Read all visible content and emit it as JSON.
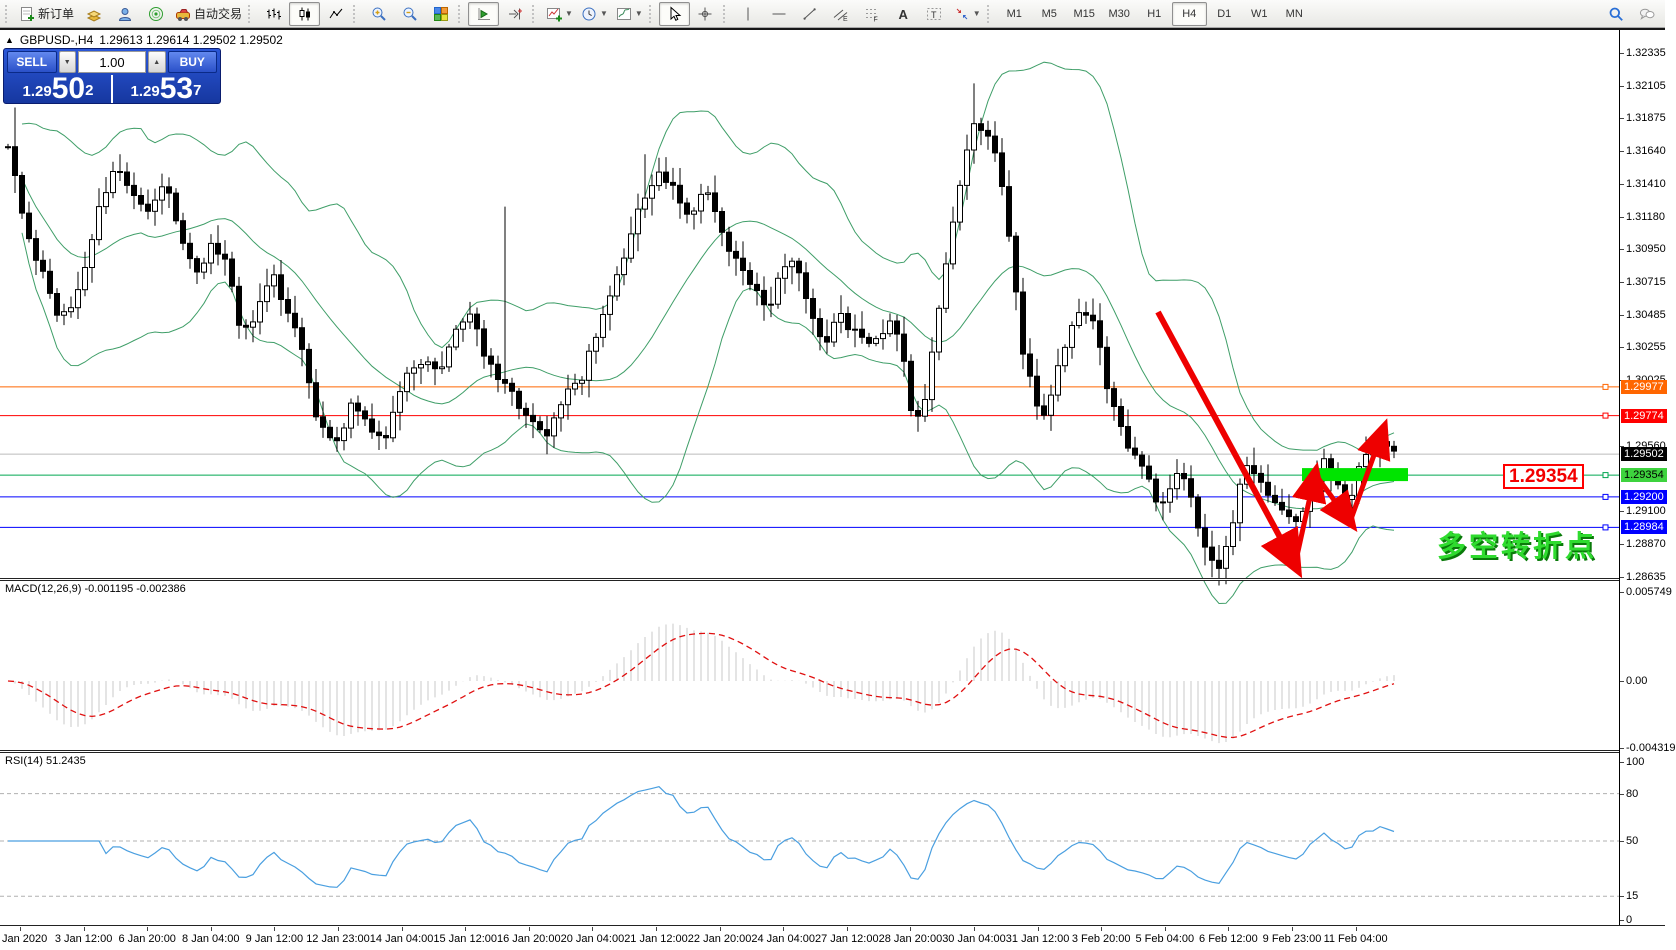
{
  "toolbar": {
    "new_order_label": "新订单",
    "autotrade_label": "自动交易",
    "groups": [
      [
        {
          "n": "new-order",
          "label_key": "new_order_label"
        },
        {
          "n": "market-watch"
        },
        {
          "n": "navigator"
        },
        {
          "n": "signals"
        },
        {
          "n": "autotrade",
          "label_key": "autotrade_label"
        }
      ],
      [
        {
          "n": "bar-chart"
        },
        {
          "n": "candle-chart",
          "pressed": true
        },
        {
          "n": "line-chart"
        }
      ],
      [
        {
          "n": "zoom-in"
        },
        {
          "n": "zoom-out"
        },
        {
          "n": "tile-windows"
        }
      ],
      [
        {
          "n": "chart-shift",
          "pressed": true
        },
        {
          "n": "auto-scroll"
        }
      ],
      [
        {
          "n": "indicators",
          "caret": true
        },
        {
          "n": "periods",
          "caret": true
        },
        {
          "n": "templates",
          "caret": true
        }
      ],
      [
        {
          "n": "cursor",
          "pressed": true
        },
        {
          "n": "crosshair"
        }
      ],
      [
        {
          "n": "vline"
        },
        {
          "n": "hline"
        },
        {
          "n": "trendline"
        },
        {
          "n": "channel"
        },
        {
          "n": "fibonacci"
        },
        {
          "n": "text"
        },
        {
          "n": "label"
        },
        {
          "n": "arrows",
          "caret": true
        }
      ]
    ],
    "timeframes": [
      "M1",
      "M5",
      "M15",
      "M30",
      "H1",
      "H4",
      "D1",
      "W1",
      "MN"
    ],
    "active_timeframe": "H4",
    "right_icons": [
      "search",
      "community"
    ]
  },
  "chart_header": {
    "symbol": "GBPUSD-,H4",
    "values": "1.29613 1.29614 1.29502 1.29502"
  },
  "one_click": {
    "sell_label": "SELL",
    "buy_label": "BUY",
    "volume": "1.00",
    "sell_price_small": "1.29",
    "sell_price_big": "50",
    "sell_price_sup": "2",
    "buy_price_small": "1.29",
    "buy_price_big": "53",
    "buy_price_sup": "7"
  },
  "annotations": {
    "price_box_text": "1.29354",
    "cn_text": "多空转折点"
  },
  "macd_pane": {
    "label": "MACD(12,26,9) -0.001195 -0.002386",
    "axis": [
      {
        "text": "0.005749",
        "v": 0.005749
      },
      {
        "text": "0.00",
        "v": 0
      },
      {
        "text": "-0.004319",
        "v": -0.004319
      }
    ]
  },
  "rsi_pane": {
    "label": "RSI(14) 51.2435",
    "axis": [
      {
        "text": "100",
        "v": 100
      },
      {
        "text": "80",
        "v": 80,
        "dash": true
      },
      {
        "text": "50",
        "v": 50,
        "dash": true
      },
      {
        "text": "15",
        "v": 15,
        "dash": true
      },
      {
        "text": "0",
        "v": 0
      }
    ]
  },
  "time_axis": [
    "2 Jan 2020",
    "3 Jan 12:00",
    "6 Jan 20:00",
    "8 Jan 04:00",
    "9 Jan 12:00",
    "12 Jan 23:00",
    "14 Jan 04:00",
    "15 Jan 12:00",
    "16 Jan 20:00",
    "20 Jan 04:00",
    "21 Jan 12:00",
    "22 Jan 20:00",
    "24 Jan 04:00",
    "27 Jan 12:00",
    "28 Jan 20:00",
    "30 Jan 04:00",
    "31 Jan 12:00",
    "3 Feb 20:00",
    "5 Feb 04:00",
    "6 Feb 12:00",
    "9 Feb 23:00",
    "11 Feb 04:00"
  ],
  "chart_data": {
    "type": "candlestick",
    "symbol": "GBPUSD",
    "timeframe": "H4",
    "indicators": [
      "Bollinger Bands (green)",
      "MACD(12,26,9)",
      "RSI(14)"
    ],
    "price_axis_ticks": [
      "1.32335",
      "1.32105",
      "1.31875",
      "1.31640",
      "1.31410",
      "1.31180",
      "1.30950",
      "1.30715",
      "1.30485",
      "1.30255",
      "1.30025",
      "1.29560",
      "1.29100",
      "1.28870",
      "1.28635"
    ],
    "ylim": [
      1.28635,
      1.32335
    ],
    "bid": 1.29502,
    "hlines": [
      {
        "price": 1.29977,
        "value": "1.29977",
        "color": "#ff6600",
        "label_bg": "#ff6600",
        "text_color": "#ffffff",
        "anchor": true
      },
      {
        "price": 1.29774,
        "value": "1.29774",
        "color": "#ff0000",
        "label_bg": "#ff0000",
        "text_color": "#ffffff",
        "anchor": true
      },
      {
        "price": 1.29502,
        "value": "1.29502",
        "color": "#bbbbbb",
        "label_bg": "#000000",
        "text_color": "#ffffff",
        "anchor": false
      },
      {
        "price": 1.29354,
        "value": "1.29354",
        "color": "#00a650",
        "label_bg": "#3ed33e",
        "text_color": "#000000",
        "anchor": true
      },
      {
        "price": 1.292,
        "value": "1.29200",
        "color": "#0000ff",
        "label_bg": "#0000ff",
        "text_color": "#ffffff",
        "anchor": true
      },
      {
        "price": 1.28984,
        "value": "1.28984",
        "color": "#0000ff",
        "label_bg": "#0000ff",
        "text_color": "#ffffff",
        "anchor": true
      }
    ],
    "highlight_bar": {
      "x1": 1302,
      "x2": 1408,
      "price": 1.29354,
      "color": "#00e400"
    },
    "trend_arrows": {
      "color": "#ee0000",
      "points": [
        [
          1158,
          1.30506
        ],
        [
          1295,
          1.28719
        ],
        [
          1315,
          1.29362
        ],
        [
          1350,
          1.29023
        ],
        [
          1383,
          1.29672
        ]
      ]
    },
    "price_anchors": [
      [
        8,
        1.317
      ],
      [
        25,
        1.3105
      ],
      [
        45,
        1.3075
      ],
      [
        60,
        1.3045
      ],
      [
        80,
        1.3065
      ],
      [
        100,
        1.313
      ],
      [
        115,
        1.315
      ],
      [
        132,
        1.3138
      ],
      [
        150,
        1.3122
      ],
      [
        165,
        1.3148
      ],
      [
        180,
        1.3108
      ],
      [
        196,
        1.3078
      ],
      [
        212,
        1.3098
      ],
      [
        228,
        1.3088
      ],
      [
        242,
        1.303
      ],
      [
        258,
        1.3055
      ],
      [
        272,
        1.3078
      ],
      [
        288,
        1.3052
      ],
      [
        302,
        1.3028
      ],
      [
        318,
        1.2972
      ],
      [
        335,
        1.2955
      ],
      [
        352,
        1.2988
      ],
      [
        368,
        1.2968
      ],
      [
        385,
        1.2958
      ],
      [
        402,
        1.2998
      ],
      [
        420,
        1.3018
      ],
      [
        438,
        1.3008
      ],
      [
        455,
        1.3038
      ],
      [
        470,
        1.3048
      ],
      [
        486,
        1.3018
      ],
      [
        502,
        1.3002
      ],
      [
        517,
        1.2988
      ],
      [
        532,
        1.2972
      ],
      [
        547,
        1.2962
      ],
      [
        562,
        1.2988
      ],
      [
        580,
        1.3002
      ],
      [
        600,
        1.3042
      ],
      [
        620,
        1.3082
      ],
      [
        640,
        1.3125
      ],
      [
        658,
        1.315
      ],
      [
        672,
        1.3138
      ],
      [
        690,
        1.3118
      ],
      [
        706,
        1.314
      ],
      [
        722,
        1.3108
      ],
      [
        738,
        1.3082
      ],
      [
        754,
        1.3068
      ],
      [
        768,
        1.3052
      ],
      [
        782,
        1.3078
      ],
      [
        796,
        1.3086
      ],
      [
        810,
        1.3048
      ],
      [
        824,
        1.3028
      ],
      [
        840,
        1.3048
      ],
      [
        856,
        1.3034
      ],
      [
        872,
        1.3028
      ],
      [
        888,
        1.3044
      ],
      [
        902,
        1.3028
      ],
      [
        914,
        1.2968
      ],
      [
        927,
        1.2996
      ],
      [
        940,
        1.3062
      ],
      [
        953,
        1.3112
      ],
      [
        966,
        1.3162
      ],
      [
        976,
        1.319
      ],
      [
        988,
        1.3172
      ],
      [
        1000,
        1.3152
      ],
      [
        1010,
        1.3098
      ],
      [
        1022,
        1.3028
      ],
      [
        1034,
        1.2988
      ],
      [
        1046,
        1.2975
      ],
      [
        1058,
        1.3012
      ],
      [
        1070,
        1.3038
      ],
      [
        1082,
        1.305
      ],
      [
        1095,
        1.304
      ],
      [
        1108,
        1.2995
      ],
      [
        1120,
        1.2968
      ],
      [
        1132,
        1.295
      ],
      [
        1145,
        1.2938
      ],
      [
        1158,
        1.2908
      ],
      [
        1170,
        1.2928
      ],
      [
        1182,
        1.2936
      ],
      [
        1195,
        1.2908
      ],
      [
        1208,
        1.2878
      ],
      [
        1222,
        1.2868
      ],
      [
        1235,
        1.2912
      ],
      [
        1248,
        1.2946
      ],
      [
        1260,
        1.293
      ],
      [
        1272,
        1.2918
      ],
      [
        1285,
        1.2908
      ],
      [
        1298,
        1.2898
      ],
      [
        1310,
        1.2928
      ],
      [
        1322,
        1.2946
      ],
      [
        1335,
        1.293
      ],
      [
        1348,
        1.2916
      ],
      [
        1360,
        1.294
      ],
      [
        1372,
        1.2952
      ],
      [
        1385,
        1.2958
      ],
      [
        1398,
        1.29502
      ]
    ],
    "spikes": [
      {
        "x": 18,
        "h": 1.3195
      },
      {
        "x": 503,
        "h": 1.3125
      },
      {
        "x": 648,
        "h": 1.3162
      },
      {
        "x": 974,
        "h": 1.3212
      },
      {
        "x": 1222,
        "l": 1.2864
      }
    ],
    "colors": {
      "bands": "#3f9e68",
      "candle": "#000000",
      "macd_hist": "#c8c8c8",
      "macd_signal": "#e01010",
      "rsi": "#4a9fe0",
      "rsi_levels": "#b0b0b0"
    }
  }
}
